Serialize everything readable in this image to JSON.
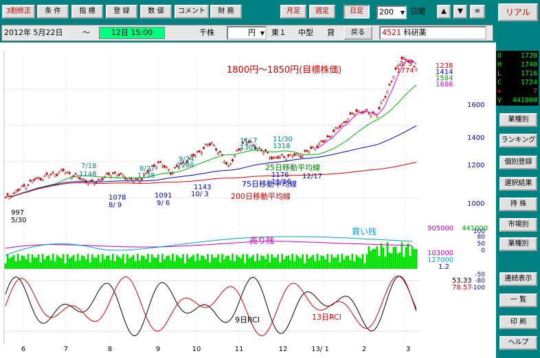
{
  "toolbar": {
    "buttons": [
      "3割修正",
      "条 件",
      "指 標",
      "登 録",
      "数 値",
      "コメント",
      "財 務"
    ],
    "period_buttons": [
      "月足",
      "週足",
      "日足"
    ],
    "count_value": "200",
    "span_label": "日間",
    "realtime_label": "リアル"
  },
  "infobar": {
    "date_start": "2012年 5月22日",
    "tilde": "～",
    "date_cursor": "12日 15:00",
    "unit": "千株",
    "currency": "円",
    "exchange": "東１",
    "category": "中型",
    "type": "貸",
    "back_label": "戻る",
    "code": "4521",
    "name": "科研薬"
  },
  "ohlc": {
    "o_label": "O",
    "o": "1720",
    "h_label": "H",
    "h": "1740",
    "l_label": "L",
    "l": "1716",
    "c_label": "C",
    "c": "1724",
    "chg_label": "+",
    "chg": "7",
    "v_label": "V",
    "v": "441000"
  },
  "sidebar": [
    "業種別",
    "ランキング",
    "個別登録",
    "選択結果",
    "持 株",
    "市場別",
    "業種別",
    "連続表示",
    "一 覧",
    "印 刷",
    "ヘルプ"
  ],
  "chart_data": [
    {
      "type": "line",
      "title": "1800円〜1850円(目標株価)",
      "ylim": [
        950,
        1780
      ],
      "yticks": [
        "1600",
        "1400",
        "1200",
        "1000"
      ],
      "last_values": [
        "1238",
        "1414",
        "1584",
        "1686"
      ],
      "x_months": [
        "6",
        "7",
        "8",
        "9",
        "10",
        "11",
        "12",
        "13/ 1",
        "2",
        "3"
      ],
      "series": [
        {
          "name": "25日移動平均線",
          "color": "#00b000"
        },
        {
          "name": "75日移動平均線",
          "color": "#0000c0"
        },
        {
          "name": "200日移動平均線",
          "color": "#d00000"
        }
      ],
      "annotations": [
        "7/18",
        "1148",
        "8/27",
        "1138",
        "9/24",
        "1198",
        "11/ 7",
        "1305",
        "11/30",
        "1318",
        "3/ 5",
        "1774",
        "997",
        "5/30",
        "1078",
        "8/ 9",
        "1091",
        "9/ 6",
        "1143",
        "10/ 3",
        "1176",
        "11/16",
        "12/17"
      ]
    },
    {
      "type": "bar",
      "labels": [
        "売り残",
        "買い残"
      ],
      "right_values": [
        "905000",
        "441000",
        "103000",
        "127000",
        "1.2"
      ]
    },
    {
      "type": "line",
      "series": [
        {
          "name": "9日RCI",
          "color": "#000000"
        },
        {
          "name": "13日RCI",
          "color": "#d00000"
        }
      ],
      "yticks": [
        "100",
        "80",
        "50",
        "0",
        "-50",
        "-80",
        "-100"
      ],
      "last_values": [
        "53.33",
        "78.57"
      ]
    }
  ],
  "colors": {
    "bg": "#008080",
    "panel": "#ffffff",
    "accent_red": "#c00000"
  }
}
